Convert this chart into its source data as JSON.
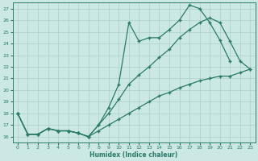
{
  "xlabel": "Humidex (Indice chaleur)",
  "bg_color": "#cce8e5",
  "grid_color": "#aacfcc",
  "line_color": "#2a7a6a",
  "xlim": [
    -0.5,
    23.5
  ],
  "ylim": [
    15.5,
    27.5
  ],
  "xticks": [
    0,
    1,
    2,
    3,
    4,
    5,
    6,
    7,
    8,
    9,
    10,
    11,
    12,
    13,
    14,
    15,
    16,
    17,
    18,
    19,
    20,
    21,
    22,
    23
  ],
  "yticks": [
    16,
    17,
    18,
    19,
    20,
    21,
    22,
    23,
    24,
    25,
    26,
    27
  ],
  "lines": [
    {
      "x": [
        0,
        1,
        2,
        3,
        4,
        5,
        6,
        7,
        8,
        9,
        10,
        11,
        12,
        13,
        14,
        15,
        16,
        17,
        18,
        19,
        20,
        21
      ],
      "y": [
        18.0,
        16.2,
        16.2,
        16.7,
        16.5,
        16.5,
        16.3,
        16.0,
        17.0,
        18.5,
        20.5,
        25.8,
        24.2,
        24.5,
        24.5,
        25.2,
        26.0,
        27.3,
        27.0,
        25.8,
        24.3,
        22.5
      ]
    },
    {
      "x": [
        0,
        1,
        2,
        3,
        4,
        5,
        6,
        7,
        8,
        9,
        10,
        11,
        12,
        13,
        14,
        15,
        16,
        17,
        18,
        19,
        20,
        21,
        22,
        23
      ],
      "y": [
        18.0,
        16.2,
        16.2,
        16.7,
        16.5,
        16.5,
        16.3,
        16.0,
        17.0,
        18.0,
        19.2,
        20.5,
        21.3,
        22.0,
        22.8,
        23.5,
        24.5,
        25.2,
        25.8,
        26.2,
        25.8,
        24.2,
        22.5,
        21.8
      ]
    },
    {
      "x": [
        0,
        1,
        2,
        3,
        4,
        5,
        6,
        7,
        8,
        9,
        10,
        11,
        12,
        13,
        14,
        15,
        16,
        17,
        18,
        19,
        20,
        21,
        22,
        23
      ],
      "y": [
        18.0,
        16.2,
        16.2,
        16.7,
        16.5,
        16.5,
        16.3,
        16.0,
        16.5,
        17.0,
        17.5,
        18.0,
        18.5,
        19.0,
        19.5,
        19.8,
        20.2,
        20.5,
        20.8,
        21.0,
        21.2,
        21.2,
        21.5,
        21.8
      ]
    }
  ]
}
